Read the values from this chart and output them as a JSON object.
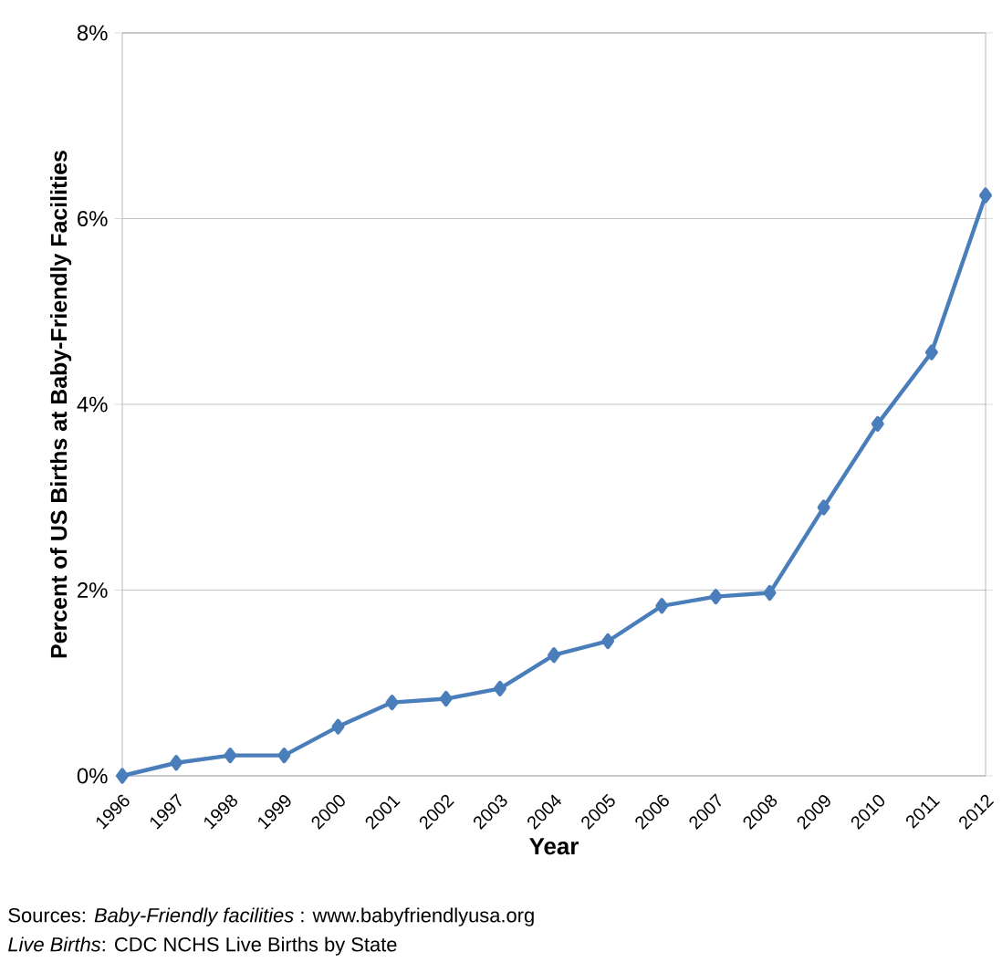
{
  "chart_data": {
    "type": "line",
    "xlabel": "Year",
    "ylabel": "Percent of US Births at Baby-Friendly Facilities",
    "categories": [
      "1996",
      "1997",
      "1998",
      "1999",
      "2000",
      "2001",
      "2002",
      "2003",
      "2004",
      "2005",
      "2006",
      "2007",
      "2008",
      "2009",
      "2010",
      "2011",
      "2012"
    ],
    "series": [
      {
        "color": "#4a7ebb",
        "values": [
          0,
          0.14,
          0.22,
          0.22,
          0.53,
          0.79,
          0.83,
          0.94,
          1.3,
          1.45,
          1.83,
          1.93,
          1.97,
          2.89,
          3.79,
          4.56,
          6.25
        ]
      }
    ],
    "ylim": [
      0,
      8
    ],
    "yticks": [
      {
        "value": 0,
        "label": "0%"
      },
      {
        "value": 2,
        "label": "2%"
      },
      {
        "value": 4,
        "label": "4%"
      },
      {
        "value": 6,
        "label": "6%"
      },
      {
        "value": 8,
        "label": "8%"
      }
    ],
    "grid": "y",
    "marker": "diamond",
    "line_style": "solid",
    "annotations": [
      "Sources: *Baby-Friendly facilities* : www.babyfriendlyusa.org",
      "*Live Births*: CDC NCHS Live Births by State"
    ]
  }
}
